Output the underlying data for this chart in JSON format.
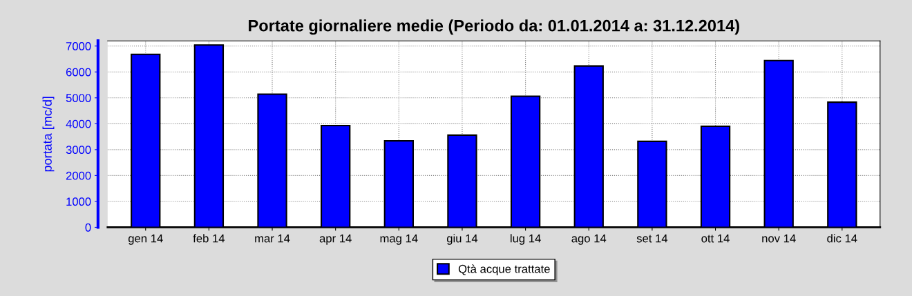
{
  "chart_data": {
    "type": "bar",
    "title": "Portate giornaliere medie (Periodo da: 01.01.2014 a: 31.12.2014)",
    "ylabel": "portata [mc/d]",
    "categories": [
      "gen 14",
      "feb 14",
      "mar 14",
      "apr 14",
      "mag 14",
      "giu 14",
      "lug 14",
      "ago 14",
      "set 14",
      "ott 14",
      "nov 14",
      "dic 14"
    ],
    "series": [
      {
        "name": "Qtà acque trattate",
        "color": "#0000ff",
        "values": [
          6680,
          7040,
          5140,
          3930,
          3340,
          3560,
          5060,
          6230,
          3320,
          3900,
          6440,
          4830
        ]
      }
    ],
    "ylim": [
      0,
      7200
    ],
    "yticks": [
      0,
      1000,
      2000,
      3000,
      4000,
      5000,
      6000,
      7000
    ],
    "grid": true,
    "legend": "bottom"
  }
}
